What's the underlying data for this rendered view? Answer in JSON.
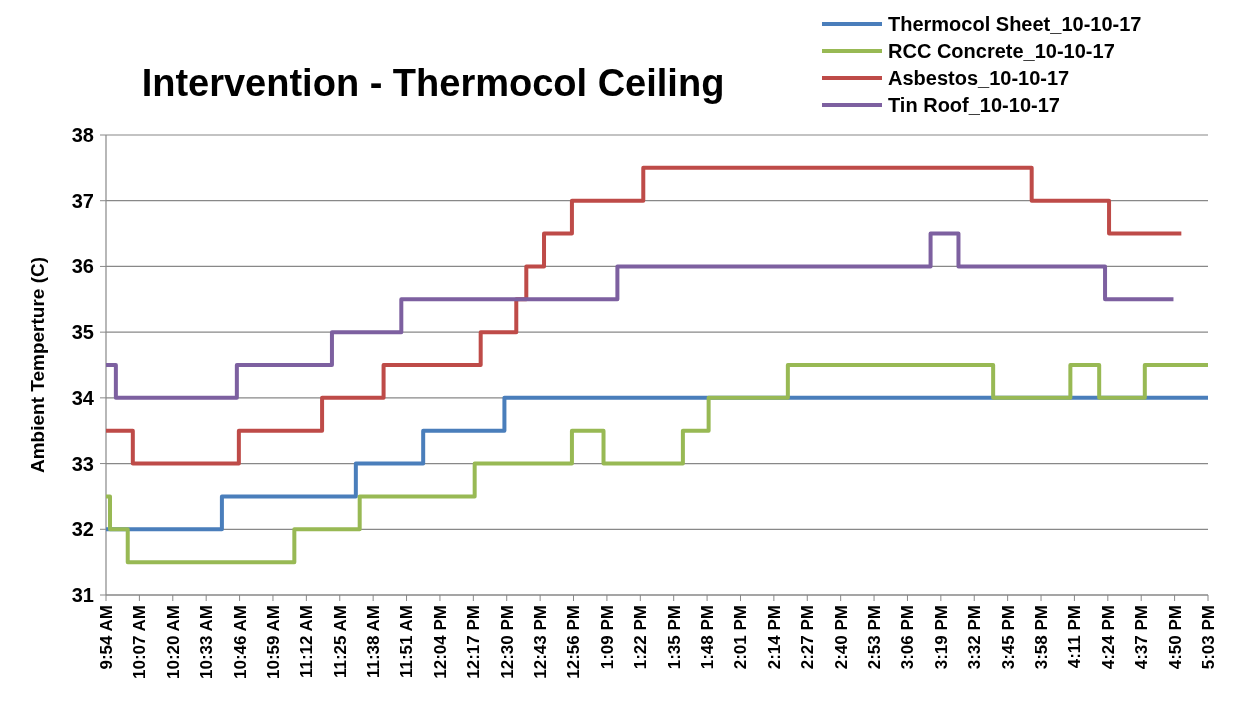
{
  "chart_data": {
    "type": "step",
    "title": "Intervention - Thermocol Ceiling",
    "ylabel": "Ambient Temperture (C)",
    "xlim": [
      9.9,
      17.05
    ],
    "ylim": [
      31,
      38
    ],
    "yticks": [
      31,
      32,
      33,
      34,
      35,
      36,
      37,
      38
    ],
    "xticks": [
      {
        "value": 9.9,
        "label": "9:54 AM"
      },
      {
        "value": 10.1167,
        "label": "10:07 AM"
      },
      {
        "value": 10.3333,
        "label": "10:20 AM"
      },
      {
        "value": 10.55,
        "label": "10:33 AM"
      },
      {
        "value": 10.7667,
        "label": "10:46 AM"
      },
      {
        "value": 10.9833,
        "label": "10:59 AM"
      },
      {
        "value": 11.2,
        "label": "11:12 AM"
      },
      {
        "value": 11.4167,
        "label": "11:25 AM"
      },
      {
        "value": 11.6333,
        "label": "11:38 AM"
      },
      {
        "value": 11.85,
        "label": "11:51 AM"
      },
      {
        "value": 12.0667,
        "label": "12:04 PM"
      },
      {
        "value": 12.2833,
        "label": "12:17 PM"
      },
      {
        "value": 12.5,
        "label": "12:30 PM"
      },
      {
        "value": 12.7167,
        "label": "12:43 PM"
      },
      {
        "value": 12.9333,
        "label": "12:56 PM"
      },
      {
        "value": 13.15,
        "label": "1:09 PM"
      },
      {
        "value": 13.3667,
        "label": "1:22 PM"
      },
      {
        "value": 13.5833,
        "label": "1:35 PM"
      },
      {
        "value": 13.8,
        "label": "1:48 PM"
      },
      {
        "value": 14.0167,
        "label": "2:01 PM"
      },
      {
        "value": 14.2333,
        "label": "2:14 PM"
      },
      {
        "value": 14.45,
        "label": "2:27 PM"
      },
      {
        "value": 14.6667,
        "label": "2:40 PM"
      },
      {
        "value": 14.8833,
        "label": "2:53 PM"
      },
      {
        "value": 15.1,
        "label": "3:06 PM"
      },
      {
        "value": 15.3167,
        "label": "3:19 PM"
      },
      {
        "value": 15.5333,
        "label": "3:32 PM"
      },
      {
        "value": 15.75,
        "label": "3:45 PM"
      },
      {
        "value": 15.9667,
        "label": "3:58 PM"
      },
      {
        "value": 16.1833,
        "label": "4:11 PM"
      },
      {
        "value": 16.4,
        "label": "4:24 PM"
      },
      {
        "value": 16.6167,
        "label": "4:37 PM"
      },
      {
        "value": 16.8333,
        "label": "4:50 PM"
      },
      {
        "value": 17.05,
        "label": "5:03 PM"
      }
    ],
    "grid": "y",
    "legend": "top right",
    "line_style": "solid",
    "series": [
      {
        "name": "Thermocol Sheet_10-10-17",
        "color": "#4a7ebb",
        "x": [
          9.9,
          10.652,
          11.521,
          11.958,
          12.485,
          17.05
        ],
        "values": [
          32,
          32.5,
          33,
          33.5,
          34,
          34
        ]
      },
      {
        "name": "RCC Concrete_10-10-17",
        "color": "#98b954",
        "x": [
          9.9,
          9.926,
          10.041,
          11.122,
          11.546,
          12.292,
          12.923,
          13.128,
          13.643,
          13.81,
          14.324,
          15.656,
          16.157,
          16.344,
          16.64,
          17.05
        ],
        "values": [
          32.5,
          32,
          31.5,
          32,
          32.5,
          33,
          33.5,
          33,
          33.5,
          34,
          34.5,
          34,
          34.5,
          34,
          34.5,
          34.5
        ]
      },
      {
        "name": "Asbestos_10-10-17",
        "color": "#be4b48",
        "x": [
          9.9,
          10.074,
          10.762,
          11.302,
          11.701,
          12.331,
          12.562,
          12.627,
          12.742,
          12.923,
          13.386,
          15.906,
          16.408,
          16.877
        ],
        "values": [
          33.5,
          33,
          33.5,
          34,
          34.5,
          35,
          35.5,
          36,
          36.5,
          37,
          37.5,
          37,
          36.5,
          36.5
        ]
      },
      {
        "name": "Tin Roof_10-10-17",
        "color": "#7d60a0",
        "x": [
          9.9,
          9.964,
          10.749,
          11.366,
          11.816,
          13.218,
          15.25,
          15.431,
          16.382,
          16.826
        ],
        "values": [
          34.5,
          34,
          34.5,
          35,
          35.5,
          36,
          36.5,
          36,
          35.5,
          35.5
        ]
      }
    ]
  }
}
